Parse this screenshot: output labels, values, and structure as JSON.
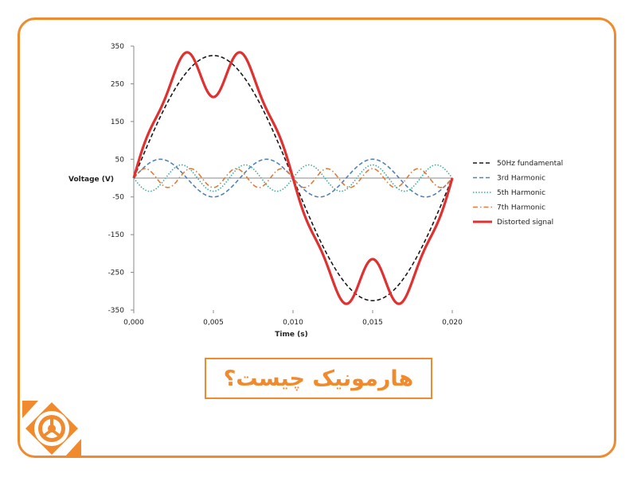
{
  "title": "هارمونیک چیست؟",
  "colors": {
    "accent": "#f08a2c",
    "fundamental": "#1a1a1a",
    "h3": "#4f81bd",
    "h5": "#3fae9c",
    "h7": "#e07b39",
    "distorted": "#e03030"
  },
  "logo": {
    "icon": "steering-wheel-icon"
  },
  "chart_data": {
    "type": "line",
    "ylabel": "Voltage (V)",
    "xlabel": "Time (s)",
    "xlim": [
      0,
      0.02
    ],
    "ylim": [
      -350,
      350
    ],
    "yticks": [
      350,
      250,
      150,
      50,
      -50,
      -150,
      -250,
      -350
    ],
    "ytick_labels": [
      "350",
      "250",
      "150",
      "50",
      "-50",
      "-150",
      "-250",
      "-350"
    ],
    "xticks": [
      0,
      0.005,
      0.01,
      0.015,
      0.02
    ],
    "xtick_labels": [
      "0,000",
      "0,005",
      "0,010",
      "0,015",
      "0,020"
    ],
    "legend_position": "right",
    "series": [
      {
        "name": "50Hz fundamental",
        "style": "dashed",
        "color": "#1a1a1a",
        "amplitude": 325,
        "harmonic": 1,
        "phase": 0
      },
      {
        "name": "3rd Harmonic",
        "style": "dashed",
        "color": "#4f81bd",
        "amplitude": 50,
        "harmonic": 3,
        "phase": 0
      },
      {
        "name": "5th Harmonic",
        "style": "dotted",
        "color": "#3fae9c",
        "amplitude": 35,
        "harmonic": 5,
        "phase": 3.1416
      },
      {
        "name": "7th Harmonic",
        "style": "dashdot",
        "color": "#e07b39",
        "amplitude": 25,
        "harmonic": 7,
        "phase": 0
      },
      {
        "name": "Distorted signal",
        "style": "solid",
        "color": "#e03030",
        "components": "sum"
      }
    ]
  }
}
